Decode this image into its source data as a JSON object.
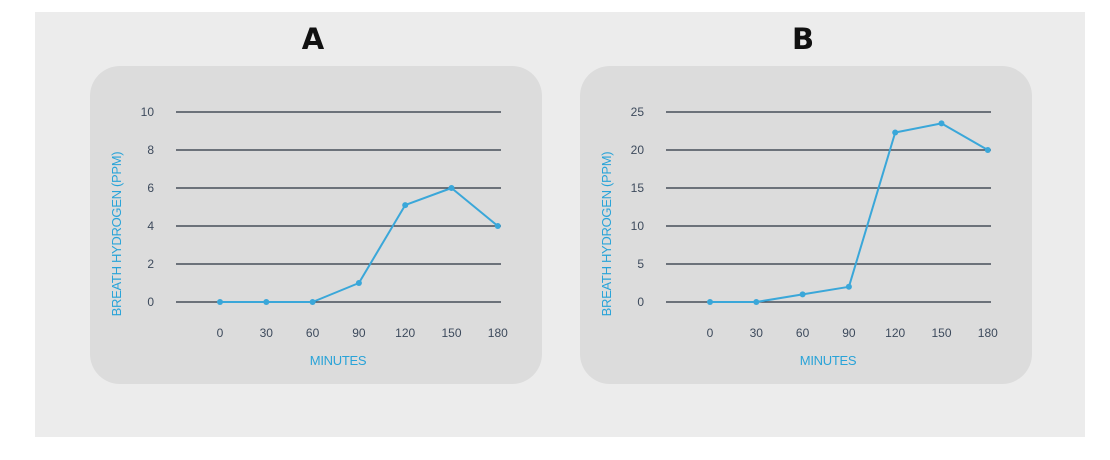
{
  "chart_data": [
    {
      "type": "line",
      "panel_label": "A",
      "x": [
        0,
        30,
        60,
        90,
        120,
        150,
        180
      ],
      "series": [
        {
          "values": [
            0,
            0,
            0,
            1,
            5.1,
            6,
            4
          ]
        }
      ],
      "xlabel": "MINUTES",
      "ylabel": "BREATH HYDROGEN (PPM)",
      "yticks": [
        0,
        2,
        4,
        6,
        8,
        10
      ],
      "ylim": [
        0,
        10
      ],
      "grid": true,
      "line_color": "#3aa7d9",
      "grid_color": "#2a3340"
    },
    {
      "type": "line",
      "panel_label": "B",
      "x": [
        0,
        30,
        60,
        90,
        120,
        150,
        180
      ],
      "series": [
        {
          "values": [
            0,
            0,
            1,
            2,
            22.3,
            23.5,
            20
          ]
        }
      ],
      "xlabel": "MINUTES",
      "ylabel": "BREATH HYDROGEN (PPM)",
      "yticks": [
        0,
        5,
        10,
        15,
        20,
        25
      ],
      "ylim": [
        0,
        25
      ],
      "grid": true,
      "line_color": "#3aa7d9",
      "grid_color": "#2a3340"
    }
  ]
}
